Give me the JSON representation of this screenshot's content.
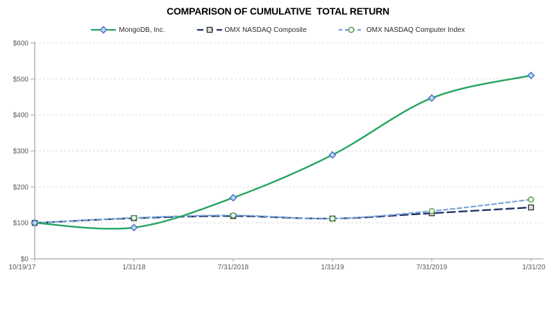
{
  "title": "COMPARISON OF CUMULATIVE  TOTAL RETURN",
  "legend": [
    {
      "label": "MongoDB, Inc.",
      "icon": "diamond-marker-icon"
    },
    {
      "label": "OMX NASDAQ Composite",
      "icon": "square-marker-icon"
    },
    {
      "label": "OMX NASDAQ Computer Index",
      "icon": "circle-marker-icon"
    }
  ],
  "chart_data": {
    "type": "line",
    "title": "COMPARISON OF CUMULATIVE  TOTAL RETURN",
    "categories": [
      "10/19/17",
      "1/31/18",
      "7/31/2018",
      "1/31/19",
      "7/31/2019",
      "1/31/20"
    ],
    "series": [
      {
        "name": "MongoDB, Inc.",
        "values": [
          100,
          87,
          170,
          289,
          447,
          510
        ],
        "color": "#23A45D",
        "dash": "",
        "line_width": 2.4,
        "marker": "diamond",
        "marker_stroke": "#4472C4",
        "marker_fill": "#BDD7EE",
        "smooth": true
      },
      {
        "name": "OMX NASDAQ Composite",
        "values": [
          100,
          113,
          119,
          112,
          127,
          143
        ],
        "color": "#203368",
        "dash": "11 6",
        "line_width": 2.4,
        "marker": "square",
        "marker_stroke": "#2B2B2B",
        "marker_fill": "#DCDCDC",
        "smooth": true
      },
      {
        "name": "OMX NASDAQ Computer Index",
        "values": [
          100,
          114,
          121,
          112,
          133,
          165
        ],
        "color": "#74A2D8",
        "dash": "6 4",
        "line_width": 2.1,
        "marker": "circle",
        "marker_stroke": "#55A054",
        "marker_fill": "#F0F7EF",
        "smooth": true
      }
    ],
    "xlabel": "",
    "ylabel": "",
    "ylim": [
      0,
      600
    ],
    "ytick_step": 100,
    "ytick_labels": [
      "$0",
      "$100",
      "$200",
      "$300",
      "$400",
      "$500",
      "$600"
    ],
    "grid": "horizontal-dashed",
    "legend_position": "top"
  },
  "colors": {
    "grid": "#D9D9D9",
    "axis": "#BFBFBF",
    "tick": "#A6A6A6",
    "tick_label": "#595959",
    "title_text": "#000000",
    "legend_text": "#2B2B2B",
    "background": "#FFFFFF"
  }
}
